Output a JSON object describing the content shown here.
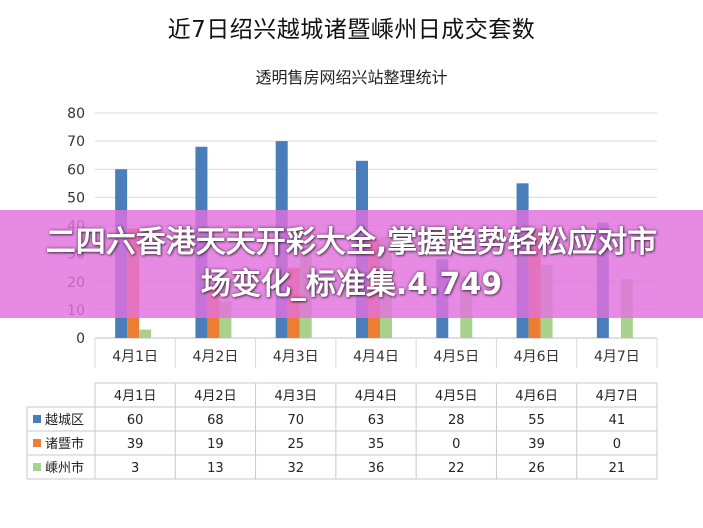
{
  "page": {
    "overlay_text": "二四六香港天天开彩大全,掌握趋势轻松应对市场变化_标准集.4.749"
  },
  "chart_data": {
    "type": "bar",
    "title": "近7日绍兴越城诸暨嵊州日成交套数",
    "subtitle": "透明售房网绍兴站整理统计",
    "categories": [
      "4月1日",
      "4月2日",
      "4月3日",
      "4月4日",
      "4月5日",
      "4月6日",
      "4月7日"
    ],
    "yticks": [
      "0",
      "10",
      "20",
      "30",
      "40",
      "50",
      "60",
      "70",
      "80"
    ],
    "ylim": [
      0,
      80
    ],
    "grid": true,
    "legend": "table-left",
    "series": [
      {
        "name": "越城区",
        "color": "#4a7ebb",
        "values": [
          60,
          68,
          70,
          63,
          28,
          55,
          41
        ],
        "labels": [
          "60",
          "68",
          "70",
          "63",
          "28",
          "55",
          "41"
        ]
      },
      {
        "name": "诸暨市",
        "color": "#ed7d31",
        "values": [
          39,
          19,
          25,
          35,
          0,
          39,
          0
        ],
        "labels": [
          "39",
          "19",
          "25",
          "35",
          "0",
          "39",
          "0"
        ]
      },
      {
        "name": "嵊州市",
        "color": "#a9d18e",
        "values": [
          3,
          13,
          32,
          36,
          22,
          26,
          21
        ],
        "labels": [
          "3",
          "13",
          "32",
          "36",
          "22",
          "26",
          "21"
        ]
      }
    ]
  }
}
